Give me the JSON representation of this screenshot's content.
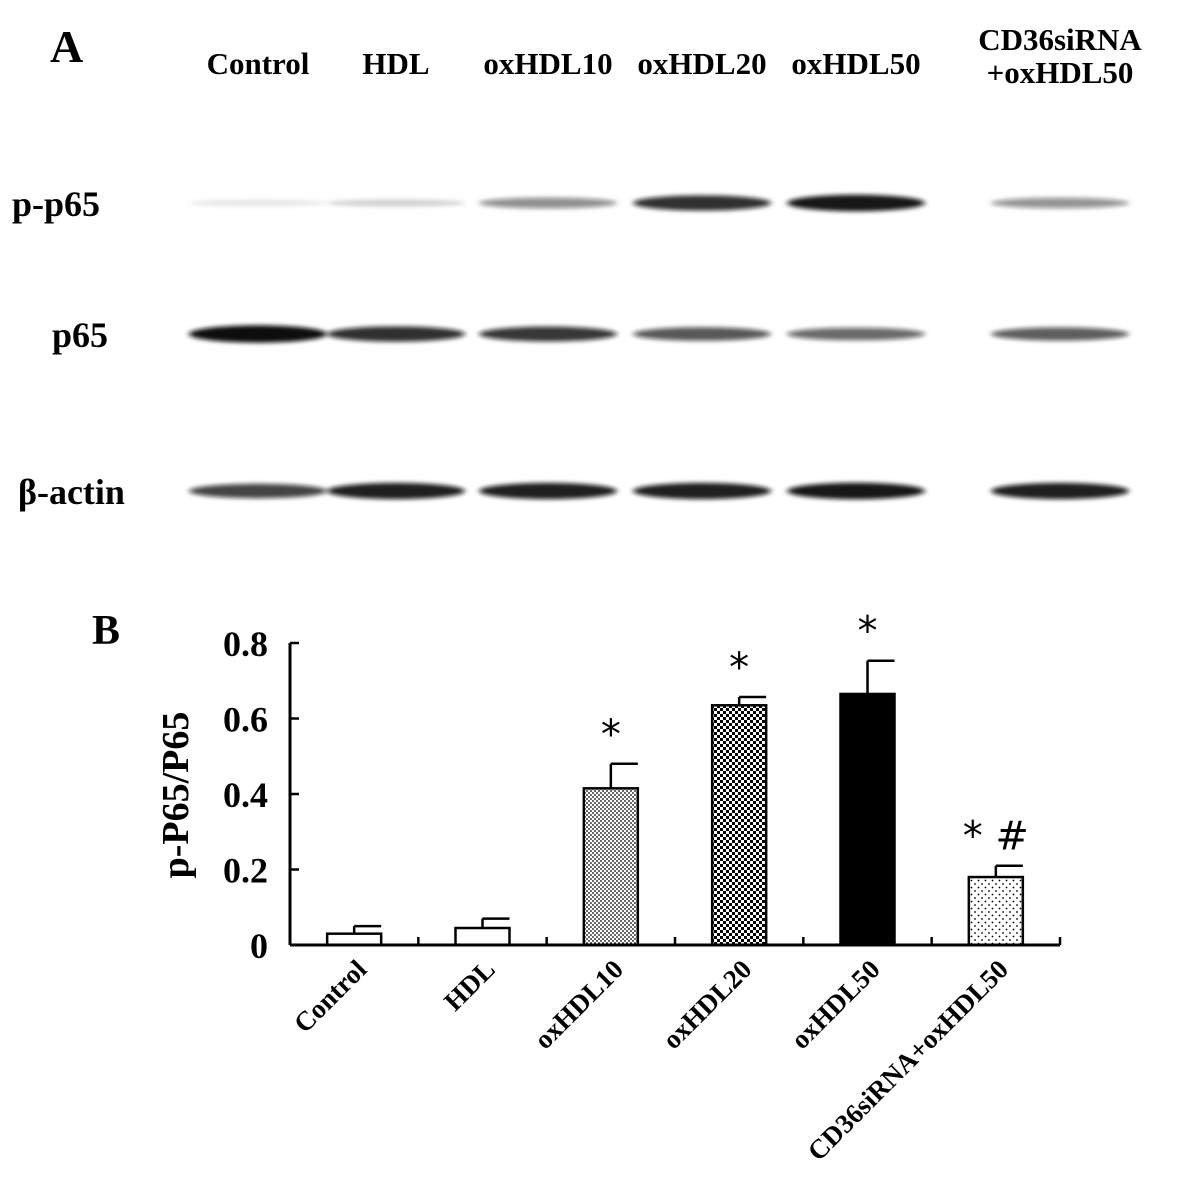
{
  "panel_a": {
    "label": "A",
    "lanes": [
      "Control",
      "HDL",
      "oxHDL10",
      "oxHDL20",
      "oxHDL50",
      [
        "CD36siRNA",
        "+oxHDL50"
      ]
    ],
    "rows": [
      {
        "label": "p-p65",
        "intensity": [
          0.02,
          0.1,
          0.4,
          0.78,
          0.88,
          0.38
        ]
      },
      {
        "label": "p65",
        "intensity": [
          0.95,
          0.78,
          0.75,
          0.62,
          0.55,
          0.6
        ]
      },
      {
        "label": "β-actin",
        "intensity": [
          0.7,
          0.85,
          0.85,
          0.85,
          0.88,
          0.85
        ]
      }
    ]
  },
  "chart_data": {
    "type": "bar",
    "panel_label": "B",
    "ylabel": "p-P65/P65",
    "ylim": [
      0,
      0.8
    ],
    "yticks": [
      0,
      0.2,
      0.4,
      0.6,
      0.8
    ],
    "ytick_labels": [
      "0",
      "0.2",
      "0.4",
      "0.6",
      "0.8"
    ],
    "categories": [
      "Control",
      "HDL",
      "oxHDL10",
      "oxHDL20",
      "oxHDL50",
      "CD36siRNA+oxHDL50"
    ],
    "values": [
      0.03,
      0.045,
      0.415,
      0.635,
      0.665,
      0.18
    ],
    "errors": [
      0.02,
      0.025,
      0.065,
      0.022,
      0.088,
      0.03
    ],
    "annotations": [
      "",
      "",
      "*",
      "*",
      "*",
      "* #"
    ],
    "fills": [
      "white",
      "white",
      "fine-dots",
      "checker",
      "black",
      "sparse-dots"
    ],
    "grid": false,
    "legend": false
  }
}
